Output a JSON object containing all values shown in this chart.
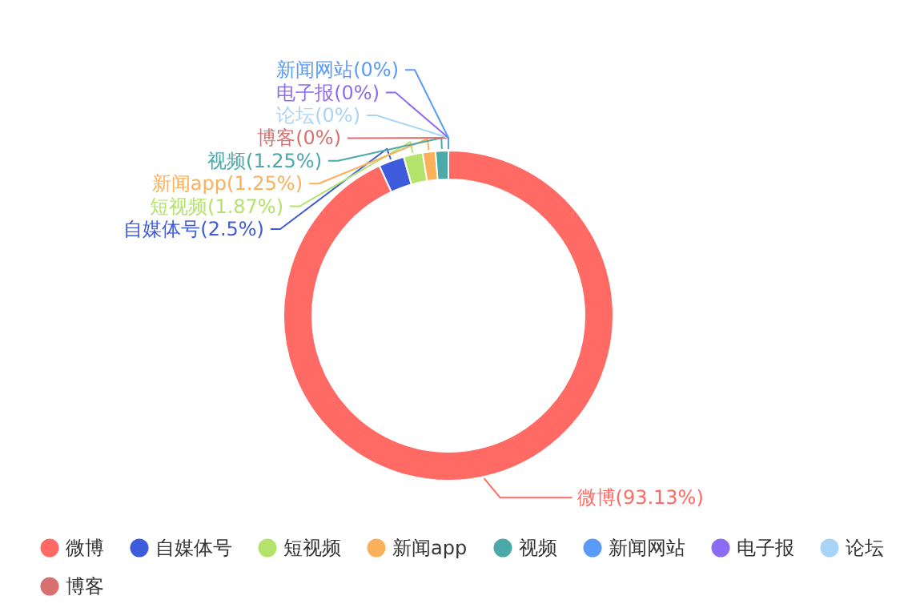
{
  "chart_data": {
    "type": "donut",
    "categories": [
      "微博",
      "自媒体号",
      "短视频",
      "新闻app",
      "视频",
      "新闻网站",
      "电子报",
      null,
      "论坛",
      "博客"
    ],
    "values": [
      93.13,
      2.5,
      1.87,
      1.25,
      1.25,
      0,
      0,
      0,
      0,
      0
    ],
    "colors": [
      "#ff6b64",
      "#3e5bdb",
      "#b3e36b",
      "#fbb05a",
      "#4ba9a9",
      "#5b9bf8",
      "#8c6cf2",
      "#4cc764",
      "#a8d4f8",
      "#d97070"
    ],
    "value_labels": [
      "微博(93.13%)",
      "自媒体号(2.5%)",
      "短视频(1.87%)",
      "新闻app(1.25%)",
      "视频(1.25%)",
      "新闻网站(0%)",
      "电子报(0%)",
      null,
      "论坛(0%)",
      "博客(0%)"
    ],
    "legend": "bottom"
  }
}
